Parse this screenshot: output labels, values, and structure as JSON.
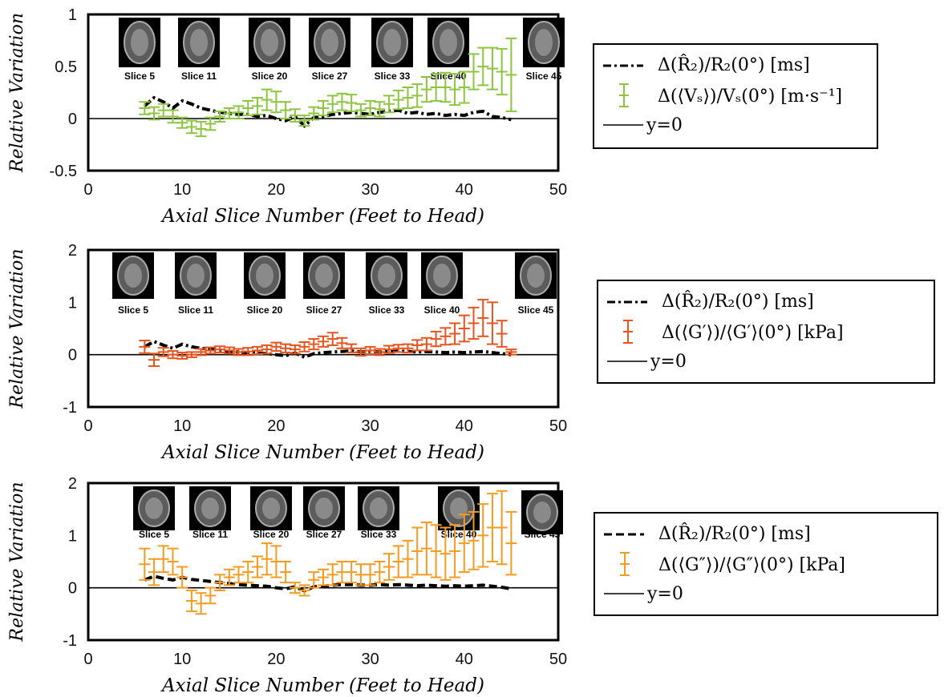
{
  "figure": {
    "xlabel": "Axial Slice Number (Feet to Head)",
    "ylabel": "Relative Variation"
  },
  "chart_data": [
    {
      "type": "line",
      "panel": "top",
      "xlim": [
        0,
        50
      ],
      "ylim": [
        -0.5,
        1
      ],
      "xticks": [
        "0",
        "10",
        "20",
        "30",
        "40",
        "50"
      ],
      "yticks": [
        "-0.5",
        "0",
        "0.5",
        "1"
      ],
      "xlabel": "Axial Slice Number (Feet to Head)",
      "ylabel": "Relative Variation",
      "legend_position": "right",
      "legend": [
        "Δ(R̂₂)/R₂(0°) [ms]",
        "Δ(⟨Vₛ⟩)/Vₛ(0°) [m·s⁻¹]",
        "y=0"
      ],
      "error_color": "#8cc63f",
      "slice_thumbnails": [
        "Slice 5",
        "Slice 11",
        "Slice 20",
        "Slice 27",
        "Slice 33",
        "Slice 40",
        "Slice 45"
      ],
      "series": [
        {
          "name": "Δ(R̂₂)/R₂(0°) [ms]",
          "style": "dashdot",
          "color": "#000000",
          "x": [
            6,
            7,
            8,
            9,
            10,
            11,
            12,
            13,
            14,
            15,
            16,
            17,
            18,
            19,
            20,
            21,
            22,
            23,
            24,
            25,
            26,
            27,
            28,
            29,
            30,
            31,
            32,
            33,
            34,
            35,
            36,
            37,
            38,
            39,
            40,
            41,
            42,
            43,
            44,
            45
          ],
          "y": [
            0.12,
            0.2,
            0.16,
            0.1,
            0.17,
            0.14,
            0.1,
            0.08,
            0.06,
            0.05,
            0.04,
            0.04,
            0.02,
            0.03,
            0.0,
            -0.02,
            0.02,
            -0.07,
            0.01,
            0.02,
            0.04,
            0.05,
            0.06,
            0.05,
            0.04,
            0.06,
            0.07,
            0.08,
            0.05,
            0.06,
            0.04,
            0.05,
            0.03,
            0.04,
            0.03,
            0.06,
            0.07,
            0.02,
            0.01,
            -0.01
          ]
        },
        {
          "name": "Δ(⟨Vₛ⟩)/Vₛ(0°) [m·s⁻¹]",
          "style": "errorbar",
          "color": "#8cc63f",
          "x": [
            6,
            7,
            8,
            9,
            10,
            11,
            12,
            13,
            14,
            15,
            16,
            17,
            18,
            19,
            20,
            21,
            22,
            23,
            24,
            25,
            26,
            27,
            28,
            29,
            30,
            31,
            32,
            33,
            34,
            35,
            36,
            37,
            38,
            39,
            40,
            41,
            42,
            43,
            44,
            45
          ],
          "y": [
            0.1,
            0.05,
            0.08,
            0.02,
            -0.04,
            -0.08,
            -0.1,
            -0.05,
            0.02,
            0.05,
            0.06,
            0.1,
            0.12,
            0.18,
            0.16,
            0.08,
            0.03,
            -0.02,
            0.05,
            0.1,
            0.14,
            0.16,
            0.15,
            0.08,
            0.1,
            0.09,
            0.14,
            0.18,
            0.2,
            0.22,
            0.28,
            0.3,
            0.3,
            0.28,
            0.3,
            0.45,
            0.5,
            0.48,
            0.45,
            0.42
          ],
          "err": [
            0.06,
            0.06,
            0.06,
            0.06,
            0.05,
            0.06,
            0.07,
            0.06,
            0.05,
            0.05,
            0.06,
            0.07,
            0.08,
            0.1,
            0.1,
            0.08,
            0.06,
            0.05,
            0.06,
            0.07,
            0.08,
            0.08,
            0.08,
            0.06,
            0.07,
            0.07,
            0.08,
            0.09,
            0.1,
            0.11,
            0.12,
            0.13,
            0.14,
            0.15,
            0.15,
            0.17,
            0.18,
            0.2,
            0.22,
            0.35
          ]
        }
      ]
    },
    {
      "type": "line",
      "panel": "middle",
      "xlim": [
        0,
        50
      ],
      "ylim": [
        -1,
        2
      ],
      "xticks": [
        "0",
        "10",
        "20",
        "30",
        "40",
        "50"
      ],
      "yticks": [
        "-1",
        "0",
        "1",
        "2"
      ],
      "xlabel": "Axial Slice Number (Feet to Head)",
      "ylabel": "Relative Variation",
      "legend_position": "right",
      "legend": [
        "Δ(R̂₂)/R₂(0°) [ms]",
        "Δ(⟨G′⟩)/⟨G′⟩(0°) [kPa]",
        "y=0"
      ],
      "error_color": "#e8531e",
      "slice_thumbnails": [
        "Slice 5",
        "Slice 11",
        "Slice 20",
        "Slice 27",
        "Slice 33",
        "Slice 40",
        "Slice 45"
      ],
      "series": [
        {
          "name": "Δ(R̂₂)/R₂(0°) [ms]",
          "style": "dashdot",
          "color": "#000000",
          "x": [
            6,
            7,
            8,
            9,
            10,
            11,
            12,
            13,
            14,
            15,
            16,
            17,
            18,
            19,
            20,
            21,
            22,
            23,
            24,
            25,
            26,
            27,
            28,
            29,
            30,
            31,
            32,
            33,
            34,
            35,
            36,
            37,
            38,
            39,
            40,
            41,
            42,
            43,
            44,
            45
          ],
          "y": [
            0.15,
            0.25,
            0.18,
            0.12,
            0.2,
            0.15,
            0.12,
            0.1,
            0.08,
            0.06,
            0.05,
            0.04,
            0.03,
            0.02,
            0.0,
            -0.02,
            0.03,
            -0.05,
            0.02,
            0.04,
            0.05,
            0.06,
            0.07,
            0.05,
            0.06,
            0.05,
            0.06,
            0.07,
            0.06,
            0.05,
            0.06,
            0.05,
            0.04,
            0.05,
            0.04,
            0.05,
            0.06,
            0.04,
            0.02,
            0.0
          ]
        },
        {
          "name": "Δ(⟨G′⟩)/⟨G′⟩(0°) [kPa]",
          "style": "errorbar",
          "color": "#e8531e",
          "x": [
            6,
            7,
            8,
            9,
            10,
            11,
            12,
            13,
            14,
            15,
            16,
            17,
            18,
            19,
            20,
            21,
            22,
            23,
            24,
            25,
            26,
            27,
            28,
            29,
            30,
            31,
            32,
            33,
            34,
            35,
            36,
            37,
            38,
            39,
            40,
            41,
            42,
            43,
            44,
            45
          ],
          "y": [
            0.15,
            -0.1,
            0.05,
            0.0,
            -0.02,
            0.0,
            0.05,
            0.08,
            0.1,
            0.08,
            0.05,
            0.06,
            0.08,
            0.1,
            0.15,
            0.12,
            0.1,
            0.15,
            0.2,
            0.25,
            0.3,
            0.22,
            0.12,
            0.05,
            0.08,
            0.05,
            0.1,
            0.12,
            0.12,
            0.18,
            0.2,
            0.3,
            0.35,
            0.4,
            0.5,
            0.6,
            0.7,
            0.6,
            0.4,
            0.05
          ],
          "err": [
            0.12,
            0.12,
            0.08,
            0.07,
            0.06,
            0.05,
            0.06,
            0.06,
            0.06,
            0.06,
            0.06,
            0.07,
            0.07,
            0.08,
            0.08,
            0.08,
            0.08,
            0.09,
            0.1,
            0.1,
            0.12,
            0.1,
            0.08,
            0.07,
            0.07,
            0.06,
            0.07,
            0.07,
            0.08,
            0.1,
            0.12,
            0.14,
            0.16,
            0.2,
            0.25,
            0.3,
            0.35,
            0.4,
            0.25,
            0.05
          ]
        }
      ]
    },
    {
      "type": "line",
      "panel": "bottom",
      "xlim": [
        0,
        50
      ],
      "ylim": [
        -1,
        2
      ],
      "xticks": [
        "0",
        "10",
        "20",
        "30",
        "40",
        "50"
      ],
      "yticks": [
        "-1",
        "0",
        "1",
        "2"
      ],
      "xlabel": "Axial Slice Number (Feet to Head)",
      "ylabel": "Relative Variation",
      "legend_position": "right",
      "legend": [
        "Δ(R̂₂)/R₂(0°) [ms]",
        "Δ(⟨G″⟩)/⟨G″⟩(0°) [kPa]",
        "y=0"
      ],
      "error_color": "#f59b22",
      "slice_thumbnails": [
        "Slice 5",
        "Slice 11",
        "Slice 20",
        "Slice 27",
        "Slice 33",
        "Slice 40",
        "Slice 45"
      ],
      "series": [
        {
          "name": "Δ(R̂₂)/R₂(0°) [ms]",
          "style": "dashed",
          "color": "#000000",
          "x": [
            6,
            7,
            8,
            9,
            10,
            11,
            12,
            13,
            14,
            15,
            16,
            17,
            18,
            19,
            20,
            21,
            22,
            23,
            24,
            25,
            26,
            27,
            28,
            29,
            30,
            31,
            32,
            33,
            34,
            35,
            36,
            37,
            38,
            39,
            40,
            41,
            42,
            43,
            44,
            45
          ],
          "y": [
            0.15,
            0.22,
            0.18,
            0.15,
            0.2,
            0.16,
            0.14,
            0.12,
            0.1,
            0.08,
            0.06,
            0.05,
            0.04,
            0.03,
            0.0,
            -0.02,
            0.02,
            -0.06,
            0.02,
            0.03,
            0.05,
            0.06,
            0.06,
            0.05,
            0.05,
            0.06,
            0.05,
            0.06,
            0.05,
            0.04,
            0.05,
            0.04,
            0.03,
            0.04,
            0.03,
            0.04,
            0.05,
            0.03,
            0.01,
            -0.02
          ]
        },
        {
          "name": "Δ(⟨G″⟩)/⟨G″⟩(0°) [kPa]",
          "style": "errorbar",
          "color": "#f59b22",
          "x": [
            6,
            7,
            8,
            9,
            10,
            11,
            12,
            13,
            14,
            15,
            16,
            17,
            18,
            19,
            20,
            21,
            22,
            23,
            24,
            25,
            26,
            27,
            28,
            29,
            30,
            31,
            32,
            33,
            34,
            35,
            36,
            37,
            38,
            39,
            40,
            41,
            42,
            43,
            44,
            45
          ],
          "y": [
            0.45,
            0.3,
            0.55,
            0.5,
            0.2,
            -0.25,
            -0.3,
            -0.15,
            0.1,
            0.2,
            0.25,
            0.3,
            0.4,
            0.55,
            0.5,
            0.3,
            0.0,
            -0.05,
            0.15,
            0.2,
            0.25,
            0.3,
            0.3,
            0.25,
            0.25,
            0.3,
            0.4,
            0.5,
            0.55,
            0.7,
            0.75,
            0.7,
            0.65,
            0.7,
            0.85,
            0.9,
            1.0,
            1.15,
            1.15,
            0.85
          ],
          "err": [
            0.3,
            0.25,
            0.25,
            0.25,
            0.2,
            0.2,
            0.2,
            0.15,
            0.15,
            0.15,
            0.15,
            0.2,
            0.2,
            0.3,
            0.3,
            0.2,
            0.1,
            0.1,
            0.15,
            0.15,
            0.2,
            0.2,
            0.2,
            0.2,
            0.2,
            0.2,
            0.25,
            0.3,
            0.35,
            0.45,
            0.5,
            0.5,
            0.5,
            0.5,
            0.55,
            0.55,
            0.6,
            0.65,
            0.7,
            0.6
          ]
        }
      ]
    }
  ]
}
